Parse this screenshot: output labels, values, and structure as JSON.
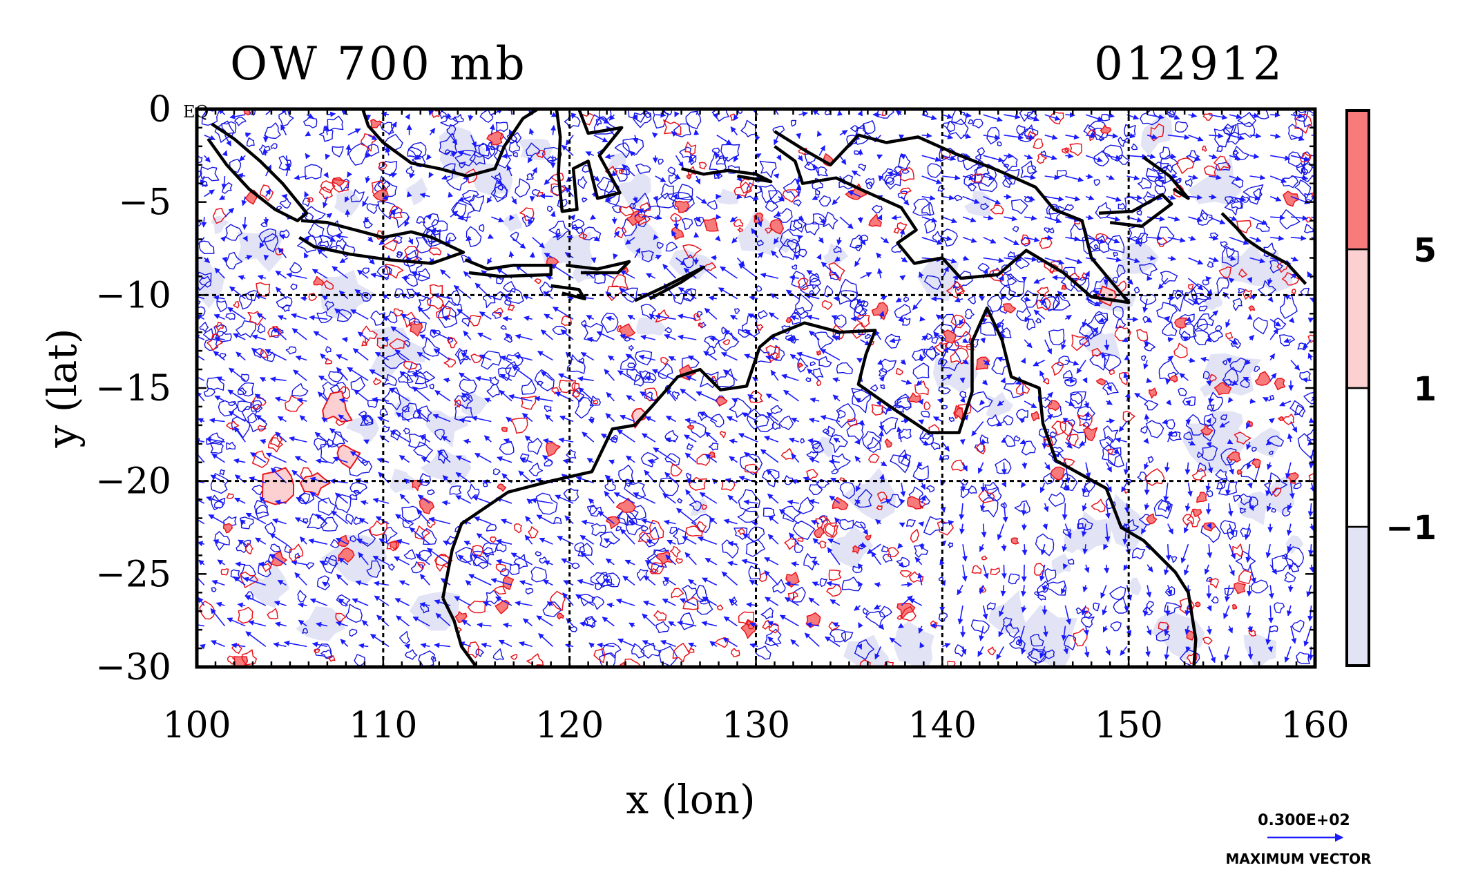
{
  "chart_data": {
    "type": "heatmap",
    "title": "OW 700 mb",
    "date_label": "012912",
    "xlabel": "x (lon)",
    "ylabel": "y (lat)",
    "xlim": [
      100,
      160
    ],
    "ylim": [
      -30,
      0
    ],
    "x_ticks": [
      100,
      110,
      120,
      130,
      140,
      150,
      160
    ],
    "y_ticks": [
      0,
      -5,
      -10,
      -15,
      -20,
      -25,
      -30
    ],
    "x_tick_labels": [
      "100",
      "110",
      "120",
      "130",
      "140",
      "150",
      "160"
    ],
    "y_tick_labels": [
      "0",
      "−5",
      "−10",
      "−15",
      "−20",
      "−25",
      "−30"
    ],
    "grid_x": [
      110,
      120,
      130,
      140,
      150
    ],
    "grid_y": [
      -10,
      -20
    ],
    "corner_label": "EQ",
    "colorbar": {
      "levels": [
        -1,
        1,
        5
      ],
      "level_labels": [
        "−1",
        "1",
        "5"
      ],
      "colors": [
        "#e2e4f6",
        "#ffffff",
        "#fcd0d0",
        "#f77b7b"
      ]
    },
    "vector_legend": {
      "value_label": "0.300E+02",
      "caption": "MAXIMUM VECTOR"
    },
    "colors": {
      "positive_contour": "#e8141c",
      "negative_contour": "#1414e0",
      "vectors": "#1a1aff",
      "coastline": "#000000"
    }
  }
}
